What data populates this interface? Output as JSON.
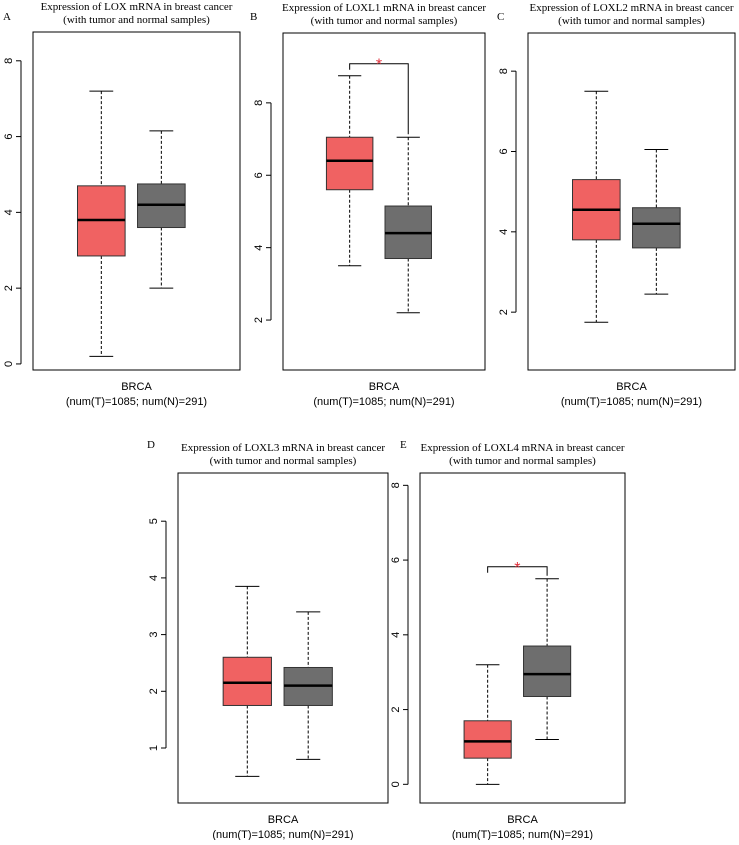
{
  "chart_data": [
    {
      "type": "box",
      "panel": "A",
      "title": "Expression of LOX mRNA in breast cancer",
      "subtitle": "(with tumor and normal samples)",
      "categories": [
        "BRCA"
      ],
      "xlabel": "(num(T)=1085; num(N)=291)",
      "ylim": [
        -0.16,
        8.76
      ],
      "yticks": [
        0,
        2,
        4,
        6,
        8
      ],
      "boxes": [
        {
          "color": "#f06262",
          "min": 0.2,
          "q1": 2.85,
          "median": 3.8,
          "q3": 4.7,
          "max": 7.2
        },
        {
          "color": "#6e6e6e",
          "min": 2.0,
          "q1": 3.6,
          "median": 4.2,
          "q3": 4.75,
          "max": 6.15
        }
      ]
    },
    {
      "type": "box",
      "panel": "B",
      "title": "Expression of LOXL1 mRNA in breast cancer",
      "subtitle": "(with tumor and normal samples)",
      "categories": [
        "BRCA"
      ],
      "xlabel": "(num(T)=1085; num(N)=291)",
      "ylim": [
        0.62,
        9.93
      ],
      "yticks": [
        2,
        4,
        6,
        8
      ],
      "significance": "*",
      "boxes": [
        {
          "color": "#f06262",
          "min": 3.5,
          "q1": 5.6,
          "median": 6.4,
          "q3": 7.05,
          "max": 8.75
        },
        {
          "color": "#6e6e6e",
          "min": 2.2,
          "q1": 3.7,
          "median": 4.4,
          "q3": 5.15,
          "max": 7.05
        }
      ]
    },
    {
      "type": "box",
      "panel": "C",
      "title": "Expression of LOXL2 mRNA in breast cancer",
      "subtitle": "(with tumor and normal samples)",
      "categories": [
        "BRCA"
      ],
      "xlabel": "(num(T)=1085; num(N)=291)",
      "ylim": [
        0.56,
        8.95
      ],
      "yticks": [
        2,
        4,
        6,
        8
      ],
      "boxes": [
        {
          "color": "#f06262",
          "min": 1.75,
          "q1": 3.8,
          "median": 4.55,
          "q3": 5.3,
          "max": 7.5
        },
        {
          "color": "#6e6e6e",
          "min": 2.45,
          "q1": 3.6,
          "median": 4.2,
          "q3": 4.6,
          "max": 6.05
        }
      ]
    },
    {
      "type": "box",
      "panel": "D",
      "title": "Expression of LOXL3 mRNA in breast cancer",
      "subtitle": "(with tumor and normal samples)",
      "categories": [
        "BRCA"
      ],
      "xlabel": "(num(T)=1085; num(N)=291)",
      "ylim": [
        0.03,
        5.85
      ],
      "yticks": [
        1,
        2,
        3,
        4,
        5
      ],
      "boxes": [
        {
          "color": "#f06262",
          "min": 0.5,
          "q1": 1.75,
          "median": 2.15,
          "q3": 2.6,
          "max": 3.85
        },
        {
          "color": "#6e6e6e",
          "min": 0.8,
          "q1": 1.75,
          "median": 2.1,
          "q3": 2.42,
          "max": 3.4
        }
      ]
    },
    {
      "type": "box",
      "panel": "E",
      "title": "Expression of LOXL4 mRNA in breast cancer",
      "subtitle": "(with tumor and normal samples)",
      "categories": [
        "BRCA"
      ],
      "xlabel": "(num(T)=1085; num(N)=291)",
      "ylim": [
        -0.5,
        8.33
      ],
      "yticks": [
        0,
        2,
        4,
        6,
        8
      ],
      "significance": "*",
      "boxes": [
        {
          "color": "#f06262",
          "min": 0,
          "q1": 0.7,
          "median": 1.15,
          "q3": 1.7,
          "max": 3.2
        },
        {
          "color": "#6e6e6e",
          "min": 1.2,
          "q1": 2.35,
          "median": 2.95,
          "q3": 3.7,
          "max": 5.5
        }
      ]
    }
  ]
}
